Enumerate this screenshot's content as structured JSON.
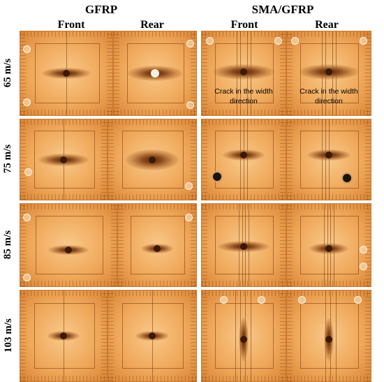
{
  "groups": [
    {
      "title": "GFRP",
      "columns": [
        "Front",
        "Rear"
      ]
    },
    {
      "title": "SMA/GFRP",
      "columns": [
        "Front",
        "Rear"
      ]
    }
  ],
  "rows": [
    "65 m/s",
    "75 m/s",
    "85 m/s",
    "103 m/s"
  ],
  "annotations": {
    "sma_front_65": "Crack in the width direction",
    "sma_rear_65": "Crack in the width direction"
  }
}
